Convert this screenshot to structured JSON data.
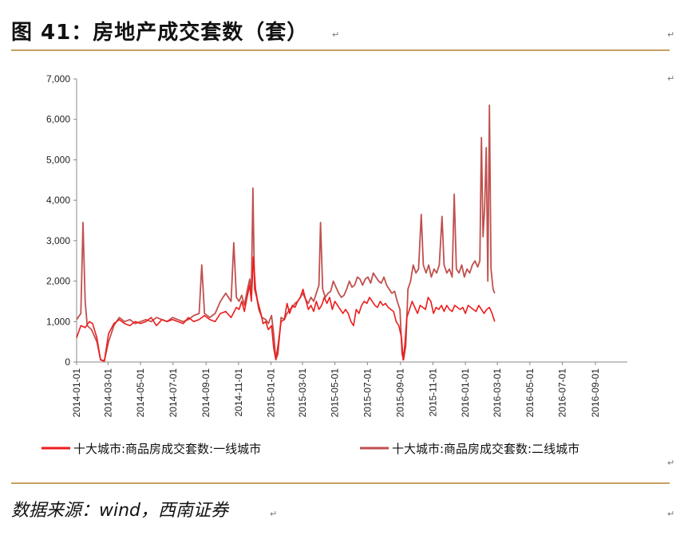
{
  "figure": {
    "title": "图 41：房地产成交套数（套）",
    "source": "数据来源：wind，西南证券",
    "return_mark": "↵"
  },
  "colors": {
    "rule": "#c5a162",
    "series1": "#ee1c1c",
    "series2": "#c0504d",
    "axis": "#888888"
  },
  "chart_data": {
    "type": "line",
    "ylim": [
      0,
      7000
    ],
    "y_ticks": [
      "0",
      "1,000",
      "2,000",
      "3,000",
      "4,000",
      "5,000",
      "6,000",
      "7,000"
    ],
    "x_ticks": [
      "2014-01-01",
      "2014-03-01",
      "2014-05-01",
      "2014-07-01",
      "2014-09-01",
      "2014-11-01",
      "2015-01-01",
      "2015-03-01",
      "2015-05-01",
      "2015-07-01",
      "2015-09-01",
      "2015-11-01",
      "2016-01-01",
      "2016-03-01",
      "2016-05-01",
      "2016-07-01",
      "2016-09-01"
    ],
    "x_range": [
      "2014-01-01",
      "2016-10-31"
    ],
    "grid": false,
    "legend_position": "bottom",
    "series": [
      {
        "name": "十大城市:商品房成交套数:一线城市",
        "values": [
          [
            0,
            600
          ],
          [
            8,
            900
          ],
          [
            16,
            850
          ],
          [
            24,
            1000
          ],
          [
            30,
            950
          ],
          [
            38,
            600
          ],
          [
            45,
            50
          ],
          [
            52,
            20
          ],
          [
            60,
            700
          ],
          [
            70,
            950
          ],
          [
            80,
            1050
          ],
          [
            90,
            950
          ],
          [
            100,
            900
          ],
          [
            110,
            1000
          ],
          [
            120,
            950
          ],
          [
            130,
            1000
          ],
          [
            140,
            1100
          ],
          [
            150,
            900
          ],
          [
            160,
            1050
          ],
          [
            170,
            1000
          ],
          [
            180,
            1050
          ],
          [
            190,
            1000
          ],
          [
            200,
            950
          ],
          [
            210,
            1100
          ],
          [
            220,
            1000
          ],
          [
            230,
            1050
          ],
          [
            240,
            1150
          ],
          [
            250,
            1050
          ],
          [
            260,
            1000
          ],
          [
            270,
            1200
          ],
          [
            280,
            1250
          ],
          [
            290,
            1100
          ],
          [
            300,
            1350
          ],
          [
            305,
            1300
          ],
          [
            310,
            1500
          ],
          [
            315,
            1250
          ],
          [
            320,
            1600
          ],
          [
            325,
            1900
          ],
          [
            328,
            1500
          ],
          [
            332,
            2600
          ],
          [
            336,
            1800
          ],
          [
            340,
            1500
          ],
          [
            346,
            1200
          ],
          [
            350,
            950
          ],
          [
            355,
            1000
          ],
          [
            360,
            800
          ],
          [
            366,
            900
          ],
          [
            370,
            350
          ],
          [
            374,
            60
          ],
          [
            378,
            400
          ],
          [
            384,
            1000
          ],
          [
            390,
            1050
          ],
          [
            395,
            1450
          ],
          [
            400,
            1200
          ],
          [
            405,
            1400
          ],
          [
            410,
            1350
          ],
          [
            415,
            1500
          ],
          [
            420,
            1600
          ],
          [
            425,
            1800
          ],
          [
            430,
            1550
          ],
          [
            435,
            1300
          ],
          [
            440,
            1400
          ],
          [
            445,
            1250
          ],
          [
            450,
            1500
          ],
          [
            455,
            1300
          ],
          [
            460,
            1400
          ],
          [
            465,
            1600
          ],
          [
            470,
            1450
          ],
          [
            475,
            1600
          ],
          [
            480,
            1300
          ],
          [
            485,
            1500
          ],
          [
            490,
            1400
          ],
          [
            495,
            1300
          ],
          [
            500,
            1200
          ],
          [
            505,
            1300
          ],
          [
            510,
            1200
          ],
          [
            515,
            1000
          ],
          [
            520,
            900
          ],
          [
            525,
            1300
          ],
          [
            530,
            1200
          ],
          [
            535,
            1400
          ],
          [
            540,
            1500
          ],
          [
            545,
            1450
          ],
          [
            550,
            1600
          ],
          [
            555,
            1500
          ],
          [
            560,
            1400
          ],
          [
            565,
            1350
          ],
          [
            570,
            1500
          ],
          [
            575,
            1400
          ],
          [
            580,
            1450
          ],
          [
            585,
            1350
          ],
          [
            590,
            1300
          ],
          [
            595,
            1250
          ],
          [
            600,
            1000
          ],
          [
            605,
            900
          ],
          [
            610,
            600
          ],
          [
            613,
            50
          ],
          [
            616,
            400
          ],
          [
            620,
            1100
          ],
          [
            625,
            1300
          ],
          [
            630,
            1500
          ],
          [
            635,
            1350
          ],
          [
            640,
            1200
          ],
          [
            645,
            1400
          ],
          [
            650,
            1350
          ],
          [
            655,
            1300
          ],
          [
            660,
            1600
          ],
          [
            665,
            1500
          ],
          [
            670,
            1200
          ],
          [
            675,
            1350
          ],
          [
            680,
            1300
          ],
          [
            685,
            1400
          ],
          [
            690,
            1250
          ],
          [
            695,
            1400
          ],
          [
            700,
            1300
          ],
          [
            705,
            1250
          ],
          [
            710,
            1400
          ],
          [
            715,
            1350
          ],
          [
            720,
            1300
          ],
          [
            725,
            1350
          ],
          [
            730,
            1200
          ],
          [
            735,
            1400
          ],
          [
            740,
            1350
          ],
          [
            745,
            1300
          ],
          [
            750,
            1250
          ],
          [
            755,
            1400
          ],
          [
            760,
            1300
          ],
          [
            765,
            1200
          ],
          [
            770,
            1300
          ],
          [
            775,
            1350
          ],
          [
            780,
            1200
          ],
          [
            785,
            1000
          ]
        ]
      },
      {
        "name": "十大城市:商品房成交套数:二线城市",
        "values": [
          [
            0,
            1050
          ],
          [
            8,
            1200
          ],
          [
            12,
            3450
          ],
          [
            16,
            1500
          ],
          [
            20,
            900
          ],
          [
            28,
            800
          ],
          [
            38,
            500
          ],
          [
            45,
            60
          ],
          [
            52,
            30
          ],
          [
            60,
            500
          ],
          [
            70,
            900
          ],
          [
            80,
            1100
          ],
          [
            90,
            1000
          ],
          [
            100,
            1050
          ],
          [
            110,
            950
          ],
          [
            120,
            1000
          ],
          [
            130,
            1050
          ],
          [
            140,
            1000
          ],
          [
            150,
            1100
          ],
          [
            160,
            1050
          ],
          [
            170,
            1000
          ],
          [
            180,
            1100
          ],
          [
            190,
            1050
          ],
          [
            200,
            1000
          ],
          [
            210,
            1050
          ],
          [
            220,
            1150
          ],
          [
            230,
            1200
          ],
          [
            235,
            2400
          ],
          [
            240,
            1200
          ],
          [
            250,
            1100
          ],
          [
            260,
            1200
          ],
          [
            270,
            1500
          ],
          [
            280,
            1700
          ],
          [
            290,
            1500
          ],
          [
            295,
            2950
          ],
          [
            300,
            1600
          ],
          [
            305,
            1500
          ],
          [
            310,
            1650
          ],
          [
            315,
            1400
          ],
          [
            320,
            1750
          ],
          [
            325,
            2050
          ],
          [
            328,
            1700
          ],
          [
            331,
            4300
          ],
          [
            334,
            1800
          ],
          [
            338,
            1600
          ],
          [
            342,
            1300
          ],
          [
            348,
            1100
          ],
          [
            355,
            1050
          ],
          [
            360,
            950
          ],
          [
            366,
            1150
          ],
          [
            370,
            700
          ],
          [
            374,
            60
          ],
          [
            378,
            200
          ],
          [
            384,
            1100
          ],
          [
            390,
            1050
          ],
          [
            395,
            1200
          ],
          [
            400,
            1300
          ],
          [
            405,
            1350
          ],
          [
            410,
            1450
          ],
          [
            415,
            1500
          ],
          [
            420,
            1600
          ],
          [
            425,
            1700
          ],
          [
            430,
            1550
          ],
          [
            435,
            1450
          ],
          [
            440,
            1600
          ],
          [
            445,
            1500
          ],
          [
            450,
            1700
          ],
          [
            455,
            1900
          ],
          [
            458,
            3450
          ],
          [
            462,
            1800
          ],
          [
            467,
            1600
          ],
          [
            472,
            1700
          ],
          [
            477,
            1750
          ],
          [
            482,
            2000
          ],
          [
            487,
            1850
          ],
          [
            492,
            1700
          ],
          [
            497,
            1600
          ],
          [
            502,
            1650
          ],
          [
            507,
            1800
          ],
          [
            512,
            2000
          ],
          [
            517,
            1850
          ],
          [
            522,
            1900
          ],
          [
            527,
            2100
          ],
          [
            532,
            2050
          ],
          [
            537,
            1900
          ],
          [
            542,
            2050
          ],
          [
            547,
            2100
          ],
          [
            552,
            1950
          ],
          [
            557,
            2200
          ],
          [
            562,
            2100
          ],
          [
            567,
            2000
          ],
          [
            572,
            1950
          ],
          [
            577,
            2100
          ],
          [
            582,
            1900
          ],
          [
            587,
            1800
          ],
          [
            592,
            1700
          ],
          [
            597,
            1750
          ],
          [
            602,
            1500
          ],
          [
            607,
            1300
          ],
          [
            611,
            200
          ],
          [
            614,
            60
          ],
          [
            618,
            400
          ],
          [
            622,
            1800
          ],
          [
            627,
            2000
          ],
          [
            632,
            2400
          ],
          [
            637,
            2200
          ],
          [
            642,
            2300
          ],
          [
            647,
            3650
          ],
          [
            651,
            2400
          ],
          [
            656,
            2200
          ],
          [
            661,
            2400
          ],
          [
            666,
            2100
          ],
          [
            671,
            2300
          ],
          [
            676,
            2200
          ],
          [
            681,
            2400
          ],
          [
            686,
            3600
          ],
          [
            690,
            2400
          ],
          [
            695,
            2200
          ],
          [
            700,
            2300
          ],
          [
            705,
            2100
          ],
          [
            709,
            4150
          ],
          [
            713,
            2300
          ],
          [
            718,
            2200
          ],
          [
            723,
            2400
          ],
          [
            728,
            2100
          ],
          [
            733,
            2300
          ],
          [
            738,
            2200
          ],
          [
            743,
            2400
          ],
          [
            748,
            2500
          ],
          [
            753,
            2350
          ],
          [
            757,
            2500
          ],
          [
            760,
            5550
          ],
          [
            763,
            3100
          ],
          [
            766,
            3800
          ],
          [
            769,
            5300
          ],
          [
            772,
            2000
          ],
          [
            775,
            6350
          ],
          [
            778,
            2300
          ],
          [
            782,
            1800
          ],
          [
            785,
            1700
          ]
        ]
      }
    ]
  }
}
